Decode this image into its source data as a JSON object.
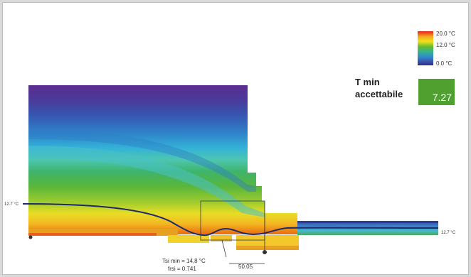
{
  "legend": {
    "max_label": "20.0 °C",
    "mid_label": "12.0 °C",
    "min_label": "0.0 °C"
  },
  "tmin_box": {
    "title_line1": "T min",
    "title_line2": "accettabile",
    "value": "7.27",
    "color": "#4fa12f"
  },
  "isotherm_labels": {
    "left": "12.7 °C",
    "right": "12.7 °C"
  },
  "annotations": {
    "tsi_min": "Tsi min = 14,8 °C",
    "frsi": "frsi = 0.741",
    "dimension": "50.05"
  },
  "colors": {
    "cold": "#4a2a8a",
    "warm": "#e85a0a"
  }
}
